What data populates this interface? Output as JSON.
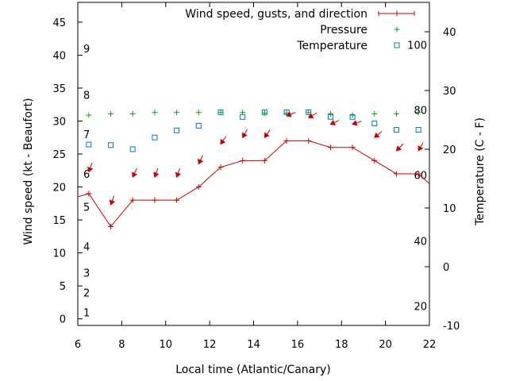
{
  "chart_data": {
    "type": "line",
    "xlabel": "Local time (Atlantic/Canary)",
    "ylabel": "Wind speed (kt - Beaufort)",
    "y2label": "Temperature (C - F)",
    "xlim": [
      6,
      22
    ],
    "ylim": [
      -1,
      48
    ],
    "y2lim": [
      -10,
      45
    ],
    "x_ticks": [
      6,
      8,
      10,
      12,
      14,
      16,
      18,
      20,
      22
    ],
    "y_ticks": [
      0,
      5,
      10,
      15,
      20,
      25,
      30,
      35,
      40,
      45
    ],
    "y2_ticks": [
      -10,
      0,
      10,
      20,
      30,
      40
    ],
    "beaufort_labels": [
      {
        "label": "1",
        "kt": 1
      },
      {
        "label": "2",
        "kt": 4
      },
      {
        "label": "3",
        "kt": 7
      },
      {
        "label": "4",
        "kt": 11
      },
      {
        "label": "5",
        "kt": 17
      },
      {
        "label": "6",
        "kt": 22
      },
      {
        "label": "7",
        "kt": 28
      },
      {
        "label": "8",
        "kt": 34
      },
      {
        "label": "9",
        "kt": 41
      }
    ],
    "fahrenheit_labels": [
      {
        "label": "20",
        "celsius": -6.7
      },
      {
        "label": "40",
        "celsius": 4.4
      },
      {
        "label": "60",
        "celsius": 15.6
      },
      {
        "label": "80",
        "celsius": 26.7
      },
      {
        "label": "100",
        "celsius": 37.8
      }
    ],
    "legend_position": "top-right",
    "series": [
      {
        "name": "Wind speed, gusts, and direction",
        "color": "#cc0000",
        "marker": "plus-line",
        "x": [
          5.5,
          6.5,
          7.5,
          8.5,
          9.5,
          10.5,
          11.5,
          12.5,
          13.5,
          14.5,
          15.5,
          16.5,
          17.5,
          18.5,
          19.5,
          20.5,
          21.5,
          22.5
        ],
        "values": [
          18,
          19,
          14,
          18,
          18,
          18,
          20,
          23,
          24,
          24,
          27,
          27,
          26,
          26,
          24,
          22,
          22,
          19
        ]
      },
      {
        "name": "Pressure",
        "color": "#00aa00",
        "marker": "plus",
        "axis": "y",
        "x": [
          6.5,
          7.5,
          8.5,
          9.5,
          10.5,
          11.5,
          12.5,
          13.5,
          14.5,
          15.5,
          16.5,
          17.5,
          18.5,
          19.5,
          20.5,
          21.5
        ],
        "values": [
          30.9,
          31.1,
          31.1,
          31.3,
          31.3,
          31.3,
          31.3,
          31.3,
          31.2,
          31.2,
          31.3,
          31.1,
          30.9,
          31.1,
          31.1,
          31.3
        ]
      },
      {
        "name": "Temperature",
        "color": "#0077cc",
        "marker": "open-square",
        "axis": "y2",
        "x": [
          6.5,
          7.5,
          8.5,
          9.5,
          10.5,
          11.5,
          12.5,
          13.5,
          14.5,
          15.5,
          16.5,
          17.5,
          18.5,
          19.5,
          20.5,
          21.5
        ],
        "values": [
          20.8,
          20.7,
          20.0,
          22.0,
          23.2,
          24.0,
          26.3,
          25.5,
          26.3,
          26.3,
          26.3,
          25.5,
          25.5,
          24.4,
          23.3,
          23.3
        ]
      }
    ],
    "wind_direction_arrows": {
      "color": "#cc0000",
      "x": [
        6.5,
        7.5,
        8.5,
        9.5,
        10.5,
        11.5,
        12.5,
        13.5,
        14.5,
        15.5,
        16.5,
        17.5,
        18.5,
        19.5,
        20.5,
        21.5
      ],
      "kt": [
        22.3,
        17.3,
        21.5,
        21.5,
        21.5,
        23.5,
        26.5,
        27.5,
        27.5,
        30.8,
        30.5,
        29.5,
        29.5,
        27.5,
        25.5,
        25.5
      ],
      "heading_deg": [
        200,
        200,
        205,
        200,
        200,
        205,
        215,
        210,
        215,
        250,
        240,
        245,
        250,
        230,
        225,
        210
      ]
    }
  }
}
